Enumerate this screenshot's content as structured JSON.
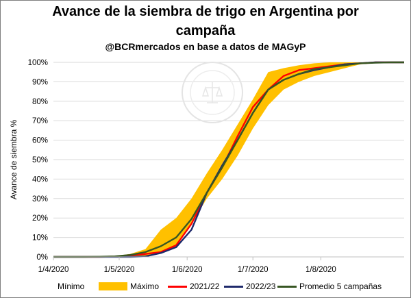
{
  "chart_data": {
    "type": "line",
    "title_line1": "Avance de la siembra de trigo en Argentina por",
    "title_line2": "campaña",
    "subtitle": "@BCRmercados en base a datos de MAGyP",
    "ylabel": "Avance de siembra %",
    "ylim": [
      0,
      100
    ],
    "yticks": [
      "0%",
      "10%",
      "20%",
      "30%",
      "40%",
      "50%",
      "60%",
      "70%",
      "80%",
      "90%",
      "100%"
    ],
    "xlim_days": [
      0,
      160
    ],
    "xticks": [
      {
        "label": "1/4/2020",
        "day": 0
      },
      {
        "label": "1/5/2020",
        "day": 30
      },
      {
        "label": "1/6/2020",
        "day": 61
      },
      {
        "label": "1/7/2020",
        "day": 91
      },
      {
        "label": "1/8/2020",
        "day": 122
      }
    ],
    "days": [
      0,
      7,
      14,
      21,
      28,
      35,
      42,
      49,
      56,
      63,
      70,
      77,
      84,
      91,
      98,
      105,
      112,
      119,
      126,
      133,
      140,
      147,
      154,
      160
    ],
    "band": {
      "min_name": "Mínimo",
      "max_name": "Máximo",
      "min": [
        0,
        0,
        0,
        0,
        0,
        0.1,
        0.5,
        2,
        5,
        17,
        30,
        40,
        52,
        66,
        78,
        86,
        90,
        93,
        95,
        97,
        99,
        99.5,
        99.8,
        100
      ],
      "max": [
        0,
        0,
        0,
        0.2,
        0.5,
        1.5,
        4,
        14,
        20,
        30,
        43,
        55,
        68,
        81,
        95,
        97,
        98.5,
        99.5,
        100,
        100,
        100,
        100,
        100,
        100
      ],
      "color": "#ffc000"
    },
    "series": [
      {
        "name": "2021/22",
        "color": "#ff0000",
        "values": [
          0,
          0,
          0,
          0,
          0.2,
          0.8,
          1.5,
          2.5,
          6,
          17,
          33,
          46,
          62,
          77,
          86,
          93,
          96,
          97,
          98,
          99,
          99.5,
          100,
          100,
          100
        ]
      },
      {
        "name": "2022/23",
        "color": "#1f2a6b",
        "values": [
          0,
          0,
          0,
          0,
          0,
          0,
          0.3,
          2,
          5,
          14,
          33,
          47,
          60,
          74,
          86,
          91,
          94,
          96,
          97.5,
          99,
          99.5,
          100,
          100,
          100
        ]
      },
      {
        "name": "Promedio 5 campañas",
        "color": "#375623",
        "values": [
          0,
          0,
          0,
          0.1,
          0.3,
          1,
          2.5,
          5.5,
          10,
          19.5,
          33,
          46,
          60,
          74,
          86,
          91,
          94,
          96.5,
          97.5,
          98.5,
          99.5,
          99.8,
          100,
          100
        ]
      }
    ]
  }
}
